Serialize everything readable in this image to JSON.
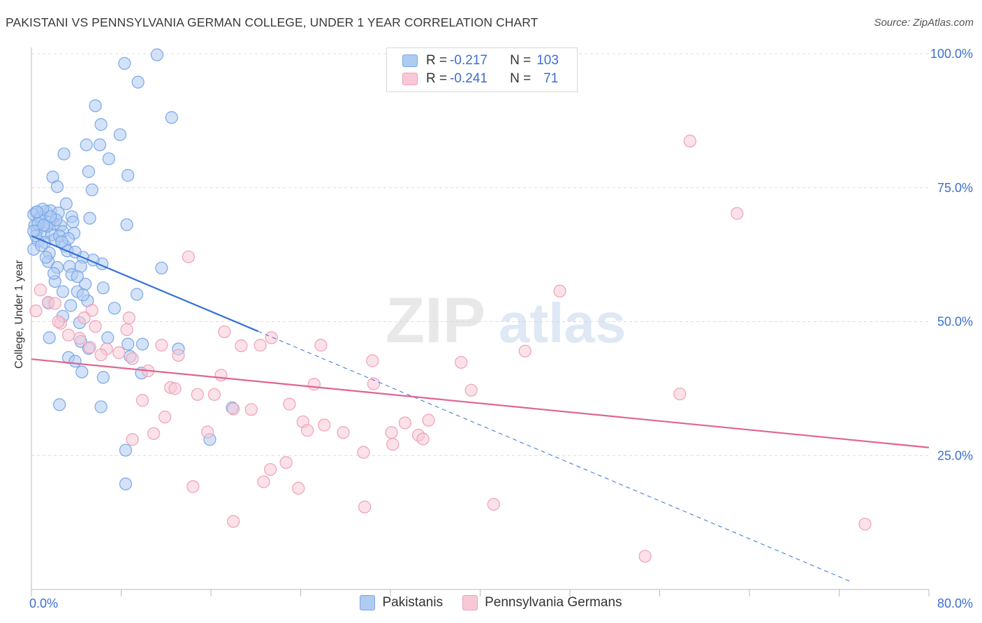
{
  "title": "PAKISTANI VS PENNSYLVANIA GERMAN COLLEGE, UNDER 1 YEAR CORRELATION CHART",
  "source": "Source: ZipAtlas.com",
  "watermark": {
    "zip": "ZIP",
    "atlas": "atlas"
  },
  "legend_top": {
    "rows": [
      {
        "r_label": "R = ",
        "r_value": "-0.217",
        "n_label": "N = ",
        "n_value": "103"
      },
      {
        "r_label": "R = ",
        "r_value": "-0.241",
        "n_label": "N = ",
        "n_value": "71"
      }
    ]
  },
  "chart_data": {
    "type": "scatter",
    "title": "PAKISTANI VS PENNSYLVANIA GERMAN COLLEGE, UNDER 1 YEAR CORRELATION CHART",
    "xlabel": "",
    "ylabel": "College, Under 1 year",
    "xlim": [
      0,
      80
    ],
    "ylim": [
      0,
      100
    ],
    "x_tick_labels": [
      "0.0%",
      "80.0%"
    ],
    "y_tick_labels": [
      "100.0%",
      "75.0%",
      "50.0%",
      "25.0%"
    ],
    "y_ticks": [
      100,
      75,
      50,
      25
    ],
    "grid": true,
    "legend": [
      "Pakistanis",
      "Pennsylvania Germans"
    ],
    "series": [
      {
        "name": "Pakistanis",
        "color": "#7aa7e6",
        "fill": "#aecbf2",
        "r": -0.217,
        "n": 103,
        "trend": {
          "x0": 0,
          "y0": 66,
          "x1": 20.2,
          "y1": 48.2,
          "dash_x1": 73,
          "dash_y1": 1.5
        },
        "points": [
          [
            11.2,
            99.8
          ],
          [
            8.3,
            98.2
          ],
          [
            9.5,
            94.7
          ],
          [
            5.7,
            90.3
          ],
          [
            12.5,
            88.1
          ],
          [
            6.2,
            86.8
          ],
          [
            7.9,
            84.9
          ],
          [
            4.9,
            83.0
          ],
          [
            6.1,
            83.0
          ],
          [
            2.9,
            81.3
          ],
          [
            6.9,
            80.4
          ],
          [
            5.1,
            78.0
          ],
          [
            8.6,
            77.3
          ],
          [
            1.9,
            77.0
          ],
          [
            2.3,
            75.2
          ],
          [
            5.4,
            74.6
          ],
          [
            3.1,
            72.0
          ],
          [
            0.4,
            70.4
          ],
          [
            1.3,
            70.6
          ],
          [
            1.7,
            70.7
          ],
          [
            2.4,
            70.3
          ],
          [
            3.6,
            69.6
          ],
          [
            0.7,
            69.2
          ],
          [
            0.9,
            68.8
          ],
          [
            1.5,
            68.5
          ],
          [
            0.3,
            68.0
          ],
          [
            2.0,
            68.2
          ],
          [
            2.6,
            67.9
          ],
          [
            3.7,
            68.6
          ],
          [
            5.2,
            69.3
          ],
          [
            8.5,
            68.1
          ],
          [
            0.5,
            67.0
          ],
          [
            1.1,
            66.5
          ],
          [
            1.8,
            66.2
          ],
          [
            2.8,
            66.8
          ],
          [
            3.8,
            66.5
          ],
          [
            0.6,
            65.0
          ],
          [
            1.2,
            64.8
          ],
          [
            2.1,
            65.3
          ],
          [
            3.0,
            64.1
          ],
          [
            3.2,
            63.2
          ],
          [
            0.2,
            63.5
          ],
          [
            1.6,
            62.8
          ],
          [
            4.6,
            62.0
          ],
          [
            6.3,
            60.8
          ],
          [
            1.5,
            61.2
          ],
          [
            2.3,
            60.1
          ],
          [
            3.4,
            60.3
          ],
          [
            4.4,
            60.3
          ],
          [
            11.6,
            60.0
          ],
          [
            3.6,
            58.8
          ],
          [
            2.1,
            57.5
          ],
          [
            4.8,
            57.0
          ],
          [
            6.4,
            56.3
          ],
          [
            2.8,
            55.6
          ],
          [
            4.1,
            55.6
          ],
          [
            9.4,
            55.1
          ],
          [
            5.0,
            53.9
          ],
          [
            3.5,
            53.0
          ],
          [
            1.5,
            53.5
          ],
          [
            7.4,
            52.5
          ],
          [
            2.8,
            51.0
          ],
          [
            4.3,
            49.8
          ],
          [
            1.6,
            47.0
          ],
          [
            4.4,
            46.3
          ],
          [
            8.6,
            45.8
          ],
          [
            9.9,
            45.8
          ],
          [
            13.1,
            44.9
          ],
          [
            3.3,
            43.3
          ],
          [
            3.9,
            42.6
          ],
          [
            8.8,
            43.5
          ],
          [
            4.5,
            40.6
          ],
          [
            6.4,
            39.6
          ],
          [
            9.8,
            40.4
          ],
          [
            2.5,
            34.5
          ],
          [
            6.2,
            34.1
          ],
          [
            17.9,
            33.9
          ],
          [
            15.9,
            28.0
          ],
          [
            8.4,
            26.0
          ],
          [
            8.4,
            19.7
          ],
          [
            0.2,
            70.0
          ],
          [
            0.8,
            69.5
          ],
          [
            1.4,
            67.8
          ],
          [
            0.4,
            66.0
          ],
          [
            2.2,
            69.0
          ],
          [
            1.0,
            71.0
          ],
          [
            0.6,
            68.3
          ],
          [
            1.7,
            69.6
          ],
          [
            2.5,
            66.0
          ],
          [
            3.3,
            65.5
          ],
          [
            0.9,
            64.2
          ],
          [
            4.1,
            58.4
          ],
          [
            5.5,
            61.5
          ],
          [
            1.3,
            62.0
          ],
          [
            0.2,
            66.9
          ],
          [
            2.7,
            64.9
          ],
          [
            3.9,
            63.0
          ],
          [
            4.6,
            55.0
          ],
          [
            2.0,
            59.0
          ],
          [
            5.1,
            45.0
          ],
          [
            6.8,
            47.0
          ],
          [
            1.1,
            68.0
          ],
          [
            0.5,
            70.5
          ]
        ]
      },
      {
        "name": "Pennsylvania Germans",
        "color": "#f0a0b8",
        "fill": "#f8c8d6",
        "r": -0.241,
        "n": 71,
        "trend": {
          "x0": 0,
          "y0": 43,
          "x1": 80,
          "y1": 26.5
        },
        "points": [
          [
            58.7,
            83.7
          ],
          [
            62.9,
            70.2
          ],
          [
            14.0,
            62.1
          ],
          [
            47.1,
            55.7
          ],
          [
            0.8,
            55.9
          ],
          [
            1.5,
            53.6
          ],
          [
            2.1,
            53.4
          ],
          [
            5.4,
            52.1
          ],
          [
            8.7,
            50.7
          ],
          [
            4.7,
            50.7
          ],
          [
            2.6,
            49.7
          ],
          [
            5.7,
            49.1
          ],
          [
            8.5,
            48.5
          ],
          [
            17.2,
            48.1
          ],
          [
            21.4,
            47.0
          ],
          [
            3.3,
            47.5
          ],
          [
            4.3,
            46.9
          ],
          [
            11.6,
            45.6
          ],
          [
            18.7,
            45.5
          ],
          [
            20.4,
            45.6
          ],
          [
            25.8,
            45.6
          ],
          [
            5.2,
            45.2
          ],
          [
            6.7,
            44.9
          ],
          [
            7.8,
            44.2
          ],
          [
            6.2,
            43.8
          ],
          [
            9.0,
            43.1
          ],
          [
            13.1,
            43.7
          ],
          [
            44.0,
            44.5
          ],
          [
            38.3,
            42.4
          ],
          [
            30.4,
            42.7
          ],
          [
            10.4,
            40.8
          ],
          [
            16.9,
            40.0
          ],
          [
            25.2,
            38.3
          ],
          [
            30.5,
            38.4
          ],
          [
            39.2,
            37.2
          ],
          [
            12.4,
            37.7
          ],
          [
            12.8,
            37.5
          ],
          [
            14.8,
            36.4
          ],
          [
            16.3,
            36.4
          ],
          [
            57.8,
            36.5
          ],
          [
            9.9,
            35.3
          ],
          [
            23.0,
            34.6
          ],
          [
            18.0,
            33.7
          ],
          [
            19.6,
            33.6
          ],
          [
            11.9,
            32.2
          ],
          [
            24.2,
            31.3
          ],
          [
            33.3,
            31.1
          ],
          [
            35.4,
            31.6
          ],
          [
            26.1,
            30.7
          ],
          [
            15.7,
            29.4
          ],
          [
            24.6,
            29.7
          ],
          [
            27.8,
            29.3
          ],
          [
            32.1,
            29.3
          ],
          [
            34.5,
            28.8
          ],
          [
            10.9,
            29.1
          ],
          [
            9.0,
            28.0
          ],
          [
            34.9,
            28.1
          ],
          [
            32.2,
            27.1
          ],
          [
            29.6,
            25.6
          ],
          [
            22.7,
            23.7
          ],
          [
            21.3,
            22.4
          ],
          [
            20.7,
            20.1
          ],
          [
            14.4,
            19.2
          ],
          [
            23.8,
            18.9
          ],
          [
            41.2,
            15.9
          ],
          [
            29.7,
            15.4
          ],
          [
            18.0,
            12.7
          ],
          [
            74.3,
            12.2
          ],
          [
            54.7,
            6.2
          ],
          [
            2.4,
            50.0
          ],
          [
            0.4,
            52.0
          ]
        ]
      }
    ]
  },
  "bottom_legend": [
    {
      "label": "Pakistanis"
    },
    {
      "label": "Pennsylvania Germans"
    }
  ]
}
